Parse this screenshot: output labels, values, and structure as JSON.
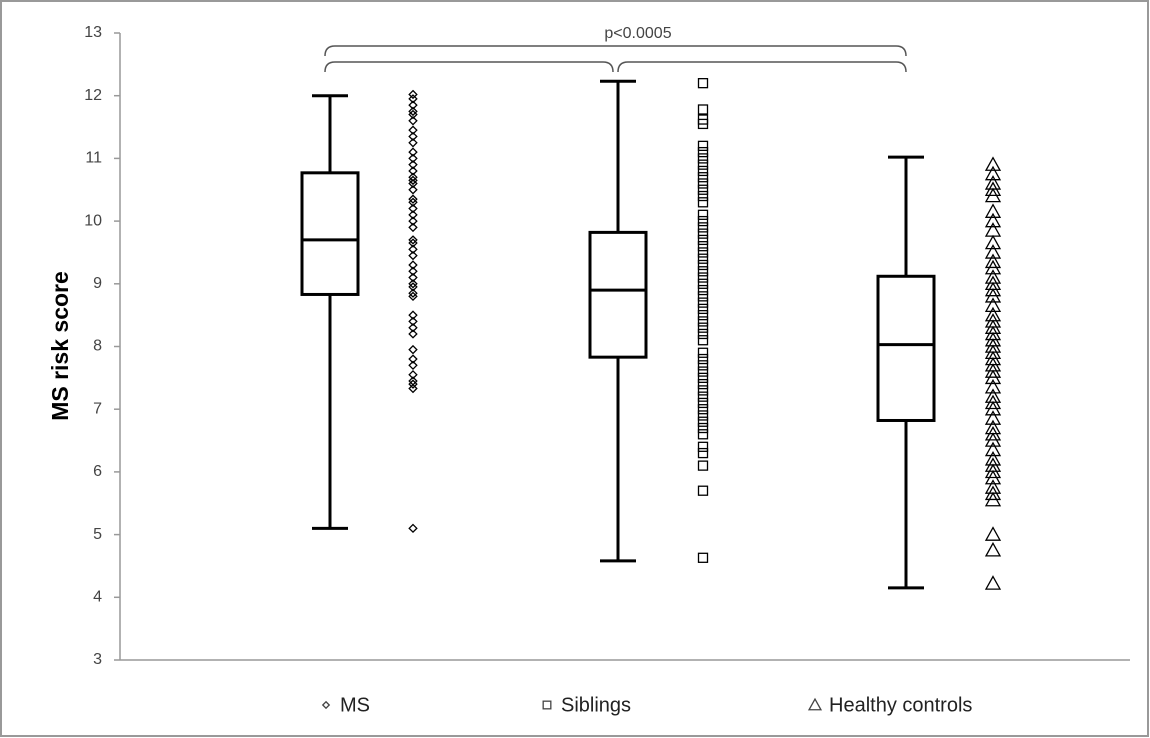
{
  "chart_data": {
    "type": "box",
    "ylabel": "MS risk score",
    "ylim": [
      3,
      13
    ],
    "yticks": [
      3,
      4,
      5,
      6,
      7,
      8,
      9,
      10,
      11,
      12,
      13
    ],
    "annotation": "p<0.0005",
    "series": [
      {
        "name": "MS",
        "marker": "diamond",
        "color": "#000000",
        "box": {
          "min": 5.1,
          "q1": 8.83,
          "median": 9.7,
          "q3": 10.77,
          "max": 12.0
        },
        "points": [
          12.02,
          11.95,
          11.85,
          11.75,
          11.7,
          11.6,
          11.45,
          11.35,
          11.25,
          11.1,
          11.0,
          10.9,
          10.8,
          10.7,
          10.65,
          10.6,
          10.5,
          10.35,
          10.3,
          10.2,
          10.1,
          10.0,
          9.9,
          9.7,
          9.65,
          9.55,
          9.45,
          9.3,
          9.2,
          9.1,
          9.0,
          8.95,
          8.85,
          8.8,
          8.5,
          8.4,
          8.3,
          8.2,
          7.95,
          7.8,
          7.7,
          7.55,
          7.45,
          7.4,
          7.33,
          5.1
        ]
      },
      {
        "name": "Siblings",
        "marker": "square",
        "color": "#000000",
        "box": {
          "min": 4.58,
          "q1": 7.83,
          "median": 8.9,
          "q3": 9.82,
          "max": 12.23
        },
        "points": [
          12.2,
          11.78,
          11.62,
          11.55,
          11.2,
          11.1,
          11.0,
          10.9,
          10.8,
          10.7,
          10.6,
          10.5,
          10.4,
          10.3,
          10.1,
          10.0,
          9.9,
          9.8,
          9.7,
          9.6,
          9.5,
          9.4,
          9.3,
          9.2,
          9.1,
          9.0,
          8.9,
          8.8,
          8.7,
          8.6,
          8.5,
          8.4,
          8.3,
          8.2,
          8.1,
          7.9,
          7.8,
          7.7,
          7.6,
          7.5,
          7.4,
          7.3,
          7.2,
          7.1,
          7.0,
          6.9,
          6.8,
          6.7,
          6.6,
          6.4,
          6.3,
          6.1,
          5.7,
          4.63
        ]
      },
      {
        "name": "Healthy controls",
        "marker": "triangle",
        "color": "#000000",
        "box": {
          "min": 4.15,
          "q1": 6.82,
          "median": 8.03,
          "q3": 9.12,
          "max": 11.02
        },
        "points": [
          10.9,
          10.75,
          10.6,
          10.5,
          10.4,
          10.15,
          10.0,
          9.85,
          9.65,
          9.5,
          9.35,
          9.25,
          9.1,
          9.0,
          8.9,
          8.8,
          8.65,
          8.5,
          8.4,
          8.3,
          8.2,
          8.1,
          8.0,
          7.9,
          7.8,
          7.7,
          7.6,
          7.5,
          7.35,
          7.2,
          7.1,
          7.0,
          6.85,
          6.7,
          6.6,
          6.5,
          6.35,
          6.2,
          6.1,
          6.0,
          5.9,
          5.75,
          5.65,
          5.55,
          5.0,
          4.75,
          4.22
        ]
      }
    ]
  }
}
